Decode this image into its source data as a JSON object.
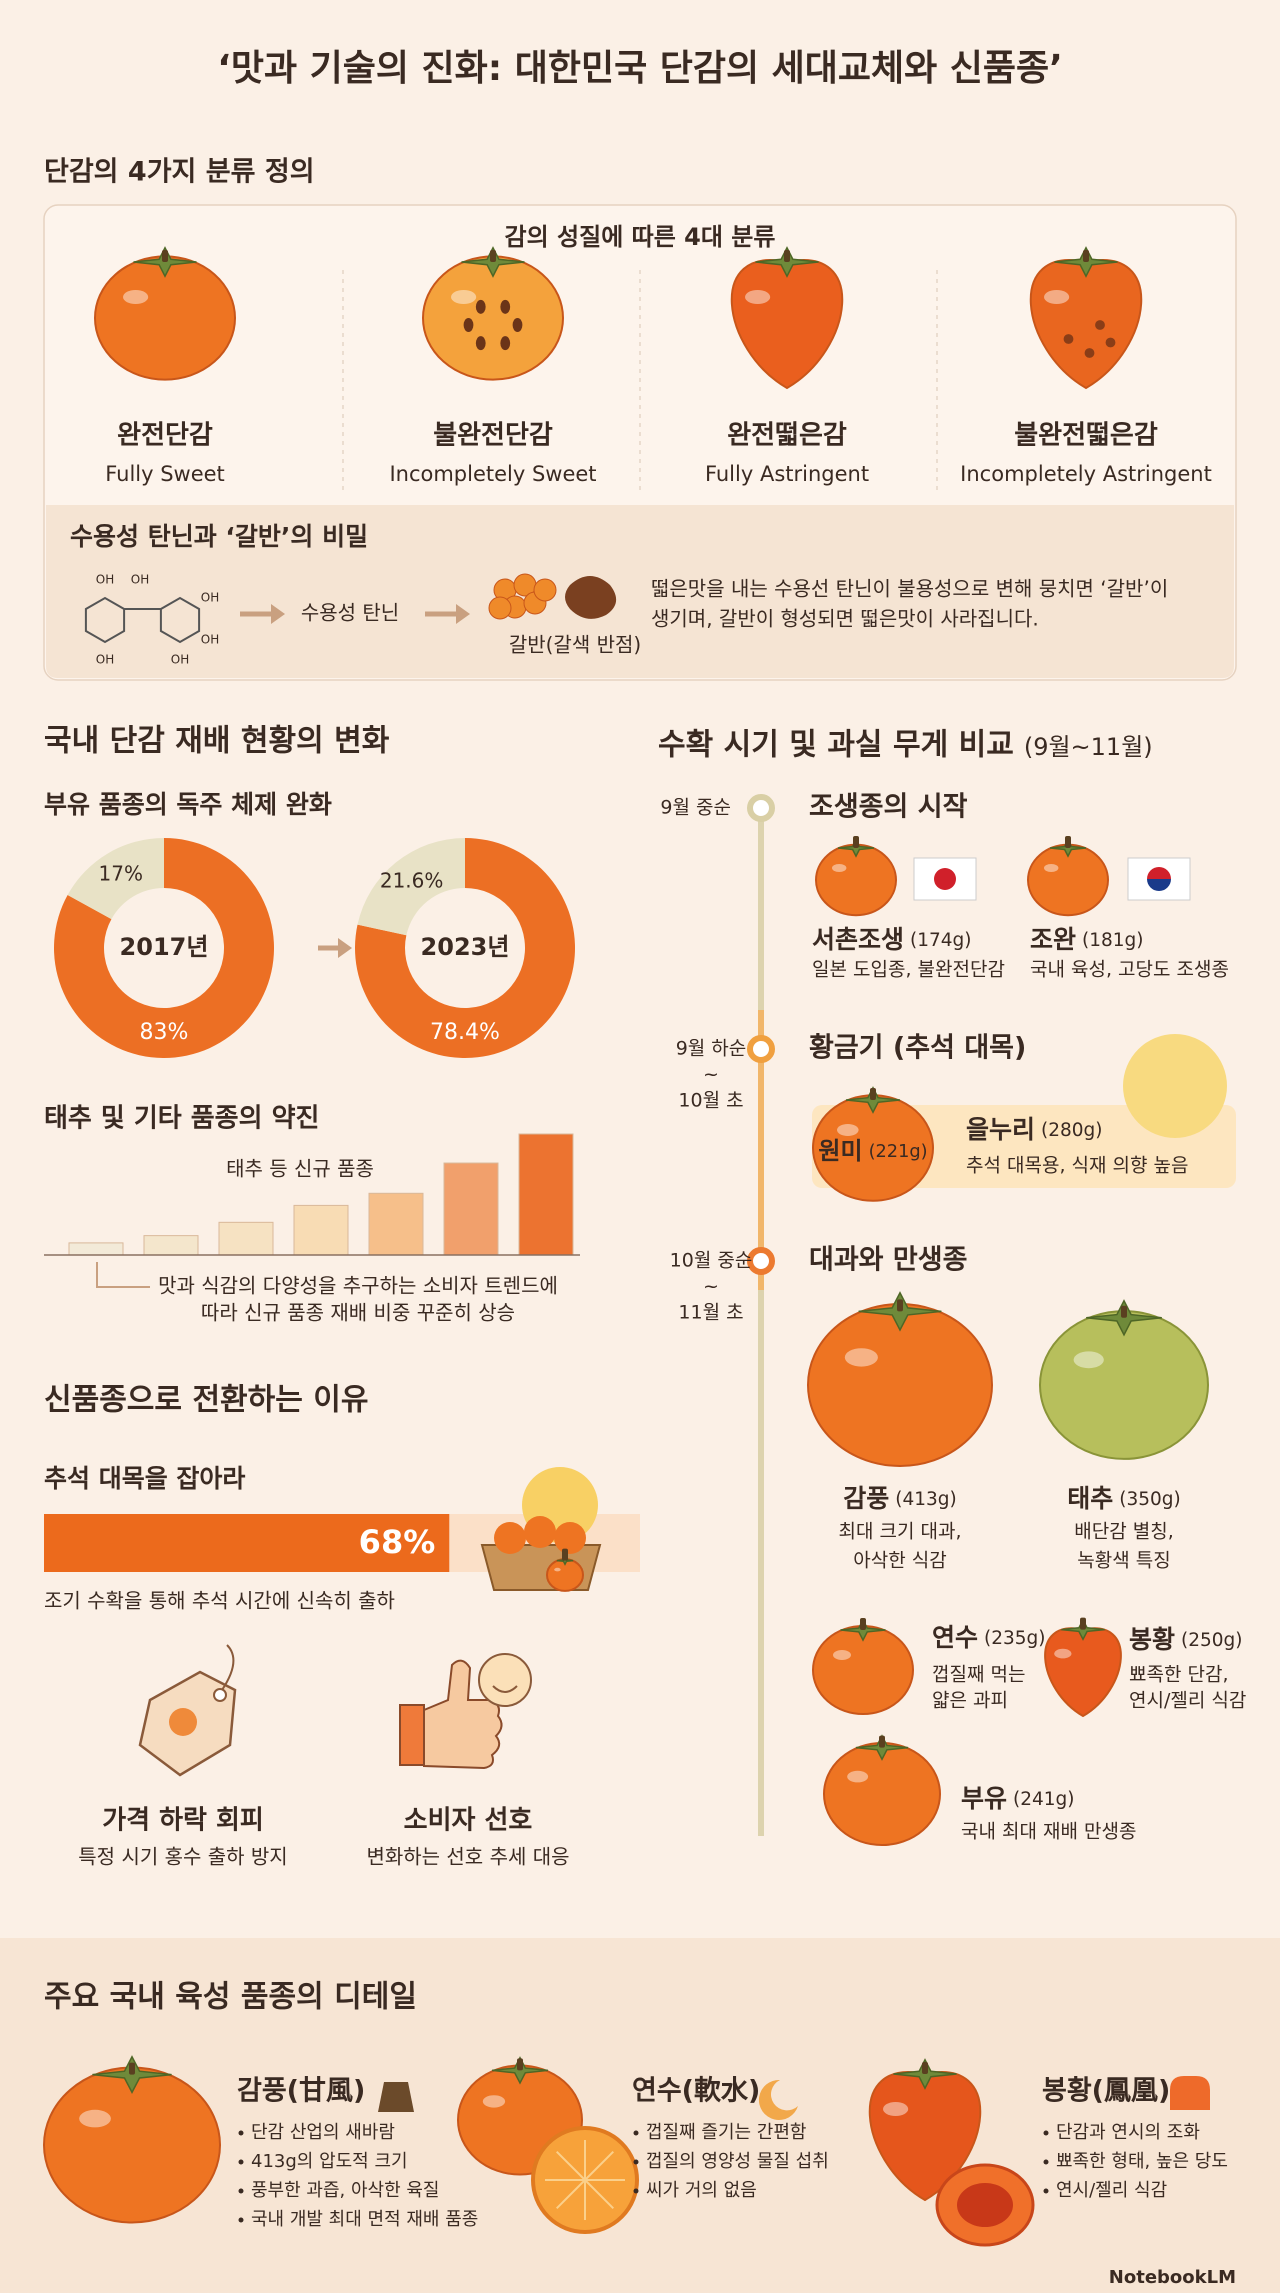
{
  "title": "‘맛과 기술의 진화: 대한민국 단감의 세대교체와 신품종’",
  "classification": {
    "heading": "단감의 4가지 분류 정의",
    "subheading": "감의 성질에 따른 4대 분류",
    "types": [
      {
        "name": "완전단감",
        "english": "Fully Sweet"
      },
      {
        "name": "불완전단감",
        "english": "Incompletely Sweet"
      },
      {
        "name": "완전떫은감",
        "english": "Fully Astringent"
      },
      {
        "name": "불완전떫은감",
        "english": "Incompletely Astringent"
      }
    ],
    "tannin": {
      "heading": "수용성 탄닌과 ‘갈반’의 비밀",
      "molecule_label": "OH",
      "step1": "수용성 탄닌",
      "step2": "갈반(갈색 반점)",
      "description": [
        "떫은맛을 내는 수용선 탄닌이 불용성으로 변해 뭉치면 ‘갈반’이",
        "생기며, 갈반이 형성되면 떫은맛이 사라집니다."
      ]
    }
  },
  "cultivation": {
    "heading": "국내 단감 재배 현황의 변화",
    "subheading": "부유 품종의 독주 체제 완화",
    "donuts": [
      {
        "year": "2017년",
        "values": [
          17,
          83
        ],
        "value_labels": [
          "17%",
          "83%"
        ]
      },
      {
        "year": "2023년",
        "values": [
          21.6,
          78.4
        ],
        "value_labels": [
          "21.6%",
          "78.4%"
        ]
      }
    ],
    "trend": {
      "heading": "태추 및 기타 품종의 약진",
      "label": "태추 등 신규 품종",
      "values": [
        10,
        16,
        27,
        41,
        51,
        76,
        100
      ],
      "ylim": [
        0,
        100
      ],
      "colors": [
        "#f3ead8",
        "#f4e6cc",
        "#f6e2c2",
        "#f8dcb4",
        "#f6bf8a",
        "#f1a06c",
        "#ec7330"
      ],
      "note": [
        "맛과 식감의 다양성을 추구하는 소비자 트렌드에",
        "따라 신규 품종 재배 비중 꾸준히 상승"
      ]
    }
  },
  "reasons": {
    "heading": "신품종으로 전환하는 이유",
    "chuseok": {
      "heading": "추석 대목을 잡아라",
      "value": 68,
      "value_label": "68%",
      "xlim": [
        0,
        100
      ],
      "note": "조기 수확을 통해 추석 시간에 신속히 출하"
    },
    "items": [
      {
        "title": "가격 하락 회피",
        "text": "특정 시기 홍수 출하 방지"
      },
      {
        "title": "소비자 선호",
        "text": "변화하는 선호 추세 대응"
      }
    ]
  },
  "timeline": {
    "heading": "수확 시기 및 과실 무게 비교",
    "period": "(9월~11월)",
    "stages": [
      {
        "time": [
          "9월 중순"
        ],
        "title": "조생종의 시작",
        "varieties": [
          {
            "name": "서촌조생",
            "weight": "(174g)",
            "desc": [
              "일본 도입종, 불완전단감"
            ]
          },
          {
            "name": "조완",
            "weight": "(181g)",
            "desc": [
              "국내 육성, 고당도 조생종"
            ]
          }
        ]
      },
      {
        "time": [
          "9월 하순",
          "~",
          "10월 초"
        ],
        "title": "황금기 (추석 대목)",
        "varieties": [
          {
            "name": "원미",
            "weight": "(221g)"
          },
          {
            "name": "을누리",
            "weight": "(280g)",
            "desc": [
              "추석 대목용, 식재 의향 높음"
            ]
          }
        ]
      },
      {
        "time": [
          "10월 중순",
          "~",
          "11월 초"
        ],
        "title": "대과와 만생종",
        "varieties": [
          {
            "name": "감풍",
            "weight": "(413g)",
            "desc": [
              "최대 크기 대과,",
              "아삭한 식감"
            ]
          },
          {
            "name": "태추",
            "weight": "(350g)",
            "desc": [
              "배단감 별칭,",
              "녹황색 특징"
            ]
          },
          {
            "name": "연수",
            "weight": "(235g)",
            "desc": [
              "껍질째 먹는",
              "얇은 과피"
            ]
          },
          {
            "name": "봉황",
            "weight": "(250g)",
            "desc": [
              "뾰족한 단감,",
              "연시/젤리 식감"
            ]
          },
          {
            "name": "부유",
            "weight": "(241g)",
            "desc": [
              "국내 최대 재배 만생종"
            ]
          }
        ]
      }
    ]
  },
  "details": {
    "heading": "주요 국내 육성 품종의 디테일",
    "varieties": [
      {
        "name": "감풍(甘風)",
        "bullets": [
          "단감 산업의 새바람",
          "413g의 압도적 크기",
          "풍부한 과즙, 아삭한 육질",
          "국내 개발 최대 면적 재배 품종"
        ]
      },
      {
        "name": "연수(軟水)",
        "bullets": [
          "껍질째 즐기는 간편함",
          "껍질의 영양성 물질 섭취",
          "씨가 거의 없음"
        ]
      },
      {
        "name": "봉황(鳳凰)",
        "bullets": [
          "단감과 연시의 조화",
          "뾰족한 형태, 높은 당도",
          "연시/젤리 식감"
        ]
      }
    ]
  },
  "footer": "NotebookLM"
}
